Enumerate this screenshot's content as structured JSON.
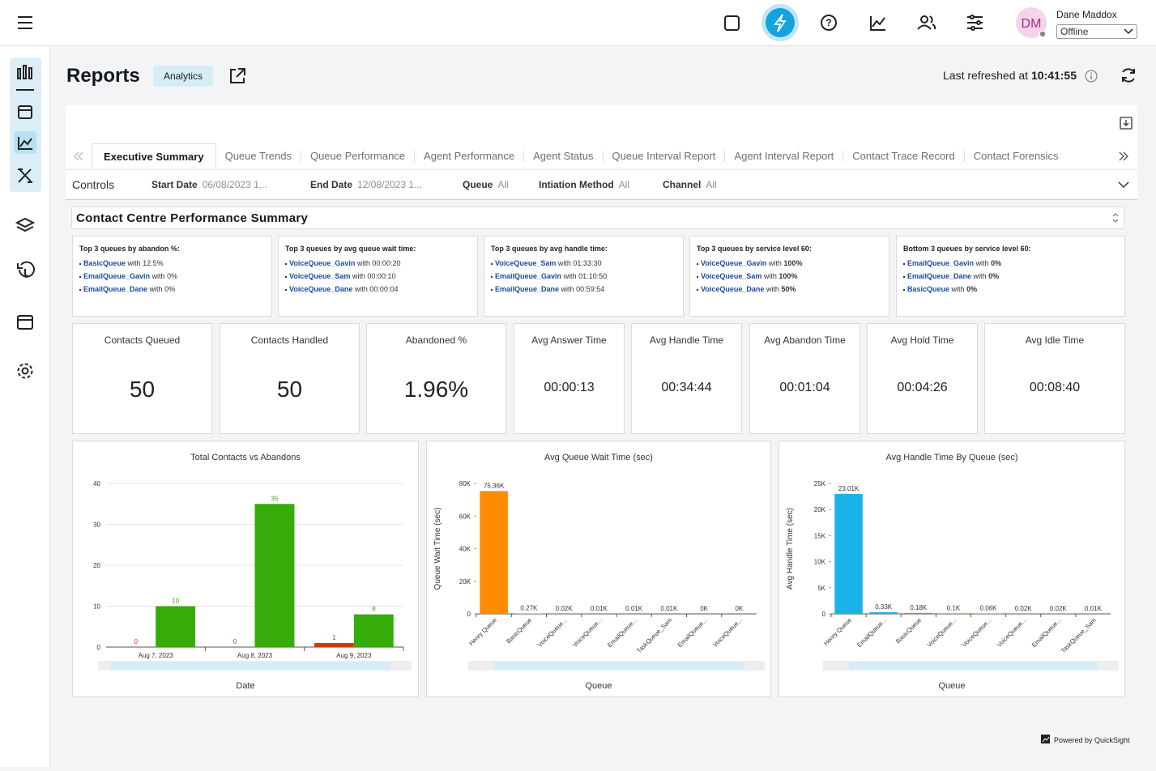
{
  "header": {
    "user_initials": "DM",
    "user_name": "Dane Maddox",
    "status": "Offline"
  },
  "page": {
    "title": "Reports",
    "badge": "Analytics",
    "refreshed_label": "Last refreshed at",
    "refreshed_time": "10:41:55"
  },
  "tabs": {
    "items": [
      "Executive Summary",
      "Queue Trends",
      "Queue Performance",
      "Agent Performance",
      "Agent Status",
      "Queue Interval Report",
      "Agent Interval Report",
      "Contact Trace Record",
      "Contact Forensics"
    ],
    "active": 0
  },
  "controls": {
    "label": "Controls",
    "filters": [
      {
        "label": "Start Date",
        "value": "06/08/2023 1..."
      },
      {
        "label": "End Date",
        "value": "12/08/2023 1..."
      },
      {
        "label": "Queue",
        "value": "All"
      },
      {
        "label": "Intiation Method",
        "value": "All"
      },
      {
        "label": "Channel",
        "value": "All"
      }
    ]
  },
  "summary": {
    "title": "Contact Centre Performance Summary",
    "connector": "with",
    "lists": [
      {
        "title": "Top 3 queues by abandon %:",
        "items": [
          {
            "queue": "BasicQueue",
            "value": "12.5%"
          },
          {
            "queue": "EmailQueue_Gavin",
            "value": "0%"
          },
          {
            "queue": "EmailQueue_Dane",
            "value": "0%"
          }
        ]
      },
      {
        "title": "Top 3 queues by avg queue wait time:",
        "items": [
          {
            "queue": "VoiceQueue_Gavin",
            "value": "00:00:20"
          },
          {
            "queue": "VoiceQueue_Sam",
            "value": "00:00:10"
          },
          {
            "queue": "VoiceQueue_Dane",
            "value": "00:00:04"
          }
        ]
      },
      {
        "title": "Top 3 queues by avg handle time:",
        "items": [
          {
            "queue": "VoiceQueue_Sam",
            "value": "01:33:30"
          },
          {
            "queue": "EmailQueue_Gavin",
            "value": "01:10:50"
          },
          {
            "queue": "EmailQueue_Dane",
            "value": "00:59:54"
          }
        ]
      },
      {
        "title": "Top 3 queues by service level 60:",
        "items": [
          {
            "queue": "VoiceQueue_Gavin",
            "value": "100%"
          },
          {
            "queue": "VoiceQueue_Sam",
            "value": "100%"
          },
          {
            "queue": "VoiceQueue_Dane",
            "value": "50%"
          }
        ]
      },
      {
        "title": "Bottom 3 queues by service level 60:",
        "items": [
          {
            "queue": "EmailQueue_Gavin",
            "value": "0%"
          },
          {
            "queue": "EmailQueue_Dane",
            "value": "0%"
          },
          {
            "queue": "BasicQueue",
            "value": "0%"
          }
        ]
      }
    ]
  },
  "kpis": [
    {
      "label": "Contacts Queued",
      "value": 50
    },
    {
      "label": "Contacts Handled",
      "value": 50
    },
    {
      "label": "Abandoned %",
      "value": "1.96%"
    },
    {
      "label": "Avg Answer Time",
      "value": "00:00:13"
    },
    {
      "label": "Avg Handle Time",
      "value": "00:34:44"
    },
    {
      "label": "Avg Abandon Time",
      "value": "00:01:04"
    },
    {
      "label": "Avg Hold Time",
      "value": "00:04:26"
    },
    {
      "label": "Avg Idle Time",
      "value": "00:08:40"
    }
  ],
  "chart_data": [
    {
      "type": "bar",
      "title": "Total Contacts vs Abandons",
      "x_label": "Date",
      "categories": [
        "Aug 7, 2023",
        "Aug 8, 2023",
        "Aug 9, 2023"
      ],
      "series": [
        {
          "color": "#cc3a12",
          "values": [
            0,
            0,
            1
          ]
        },
        {
          "color": "#36ad0a",
          "values": [
            10,
            35,
            8
          ]
        }
      ],
      "ylim": [
        0,
        40
      ],
      "yticks": [
        0,
        10,
        20,
        30,
        40
      ],
      "grid": true
    },
    {
      "type": "bar",
      "title": "Avg Queue Wait Time (sec)",
      "x_label": "Queue",
      "y_label": "Queue Wait Time (sec)",
      "categories": [
        "Henry Queue",
        "BasicQueue",
        "VoiceQueue...",
        "VoiceQueue...",
        "EmailQueue...",
        "TaskQueue_Sam",
        "EmailQueue...",
        "VoiceQueue..."
      ],
      "series": [
        {
          "color": "#ff8c00",
          "values": [
            75360,
            270,
            20,
            10,
            10,
            10,
            0,
            0
          ],
          "value_labels": [
            "75.36K",
            "0.27K",
            "0.02K",
            "0.01K",
            "0.01K",
            "0.01K",
            "0K",
            "0K"
          ]
        }
      ],
      "ylim": [
        0,
        80000
      ],
      "yticks": [
        0,
        {
          "value": 20000,
          "label": "20K"
        },
        {
          "value": 40000,
          "label": "40K"
        },
        {
          "value": 60000,
          "label": "60K"
        },
        {
          "value": 80000,
          "label": "80K"
        }
      ],
      "grid": false
    },
    {
      "type": "bar",
      "title": "Avg Handle Time By Queue (sec)",
      "x_label": "Queue",
      "y_label": "Avg Handle Time (sec)",
      "categories": [
        "Henry Queue",
        "EmailQueue...",
        "BasicQueue",
        "VoiceQueue...",
        "VoiceQueue...",
        "VoiceQueue...",
        "EmailQueue...",
        "TaskQueue_Sam"
      ],
      "series": [
        {
          "color": "#1ab2e8",
          "values": [
            23010,
            330,
            180,
            100,
            60,
            20,
            20,
            10
          ],
          "value_labels": [
            "23.01K",
            "0.33K",
            "0.18K",
            "0.1K",
            "0.06K",
            "0.02K",
            "0.02K",
            "0.01K"
          ]
        }
      ],
      "ylim": [
        0,
        25000
      ],
      "yticks": [
        0,
        {
          "value": 5000,
          "label": "5K"
        },
        {
          "value": 10000,
          "label": "10K"
        },
        {
          "value": 15000,
          "label": "15K"
        },
        {
          "value": 20000,
          "label": "20K"
        },
        {
          "value": 25000,
          "label": "25K"
        }
      ],
      "grid": false
    }
  ],
  "footer": {
    "text": "Powered by QuickSight"
  }
}
